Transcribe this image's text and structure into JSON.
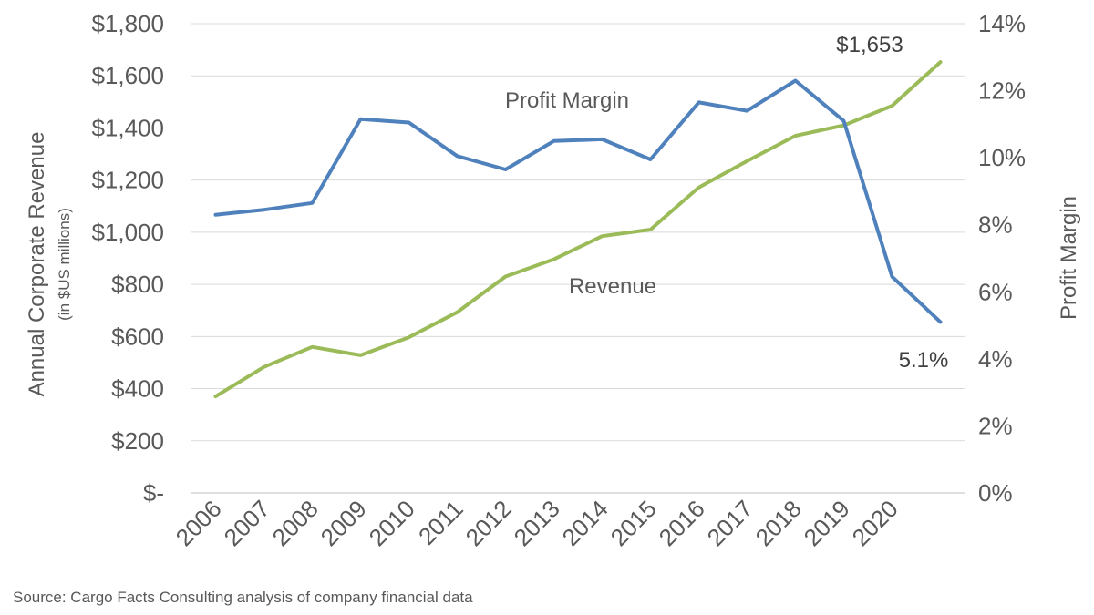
{
  "chart_data": {
    "type": "line",
    "categories": [
      "2006",
      "2007",
      "2008",
      "2009",
      "2010",
      "2011",
      "2012",
      "2013",
      "2014",
      "2015",
      "2016",
      "2017",
      "2018",
      "2019",
      "2020"
    ],
    "x": [
      "2006",
      "2007",
      "2008",
      "2009",
      "2010",
      "2011",
      "2012",
      "2013",
      "2014",
      "2015",
      "2016",
      "2017",
      "2018",
      "2019",
      "2020",
      ""
    ],
    "series": [
      {
        "name": "Profit Margin",
        "axis": "right",
        "color": "#4f81bd",
        "values": [
          8.3,
          8.45,
          8.65,
          11.15,
          11.05,
          10.05,
          9.65,
          10.5,
          10.55,
          9.95,
          11.65,
          11.4,
          12.3,
          11.1,
          6.45,
          5.1
        ]
      },
      {
        "name": "Revenue",
        "axis": "left",
        "color": "#9bbb59",
        "values": [
          370,
          483,
          560,
          528,
          597,
          693,
          830,
          896,
          985,
          1010,
          1172,
          1273,
          1370,
          1410,
          1485,
          1653
        ]
      }
    ],
    "y_left": {
      "label": "Annual Corporate Revenue",
      "sublabel": "(in $US millions)",
      "ylim": [
        0,
        1800
      ],
      "ticks": [
        0,
        200,
        400,
        600,
        800,
        1000,
        1200,
        1400,
        1600,
        1800
      ],
      "tick_labels": [
        "$-",
        "$200",
        "$400",
        "$600",
        "$800",
        "$1,000",
        "$1,200",
        "$1,400",
        "$1,600",
        "$1,800"
      ]
    },
    "y_right": {
      "label": "Profit Margin",
      "ylim": [
        0,
        14
      ],
      "ticks": [
        0,
        2,
        4,
        6,
        8,
        10,
        12,
        14
      ],
      "tick_labels": [
        "0%",
        "2%",
        "4%",
        "6%",
        "8%",
        "10%",
        "12%",
        "14%"
      ]
    },
    "annotations": {
      "profit_label": "Profit Margin",
      "revenue_label": "Revenue",
      "end_revenue": "$1,653",
      "end_margin": "5.1%"
    },
    "grid": true,
    "legend": "none",
    "gridline_color": "#d9d9d9"
  },
  "source": "Source: Cargo Facts Consulting analysis of company financial data"
}
